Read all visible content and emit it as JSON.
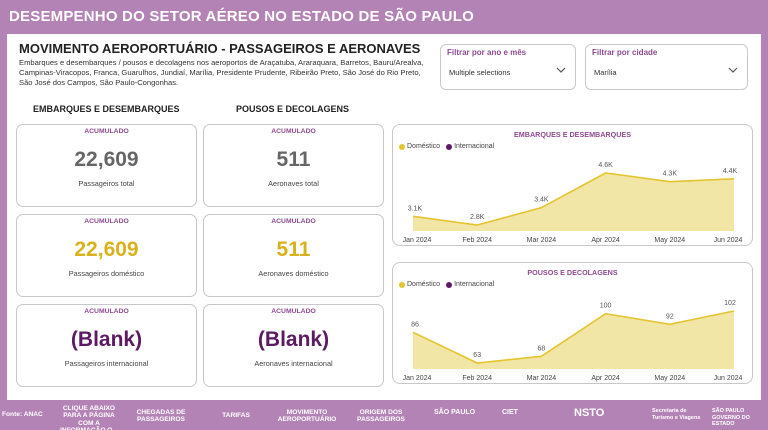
{
  "header": {
    "title": "DESEMPENHO DO SETOR AÉREO NO ESTADO DE SÃO PAULO"
  },
  "section": {
    "title": "MOVIMENTO AEROPORTUÁRIO - PASSAGEIROS E AERONAVES",
    "description": "Embarques e desembarques / pousos e decolagens nos aeroportos de Araçatuba, Araraquara, Barretos, Bauru/Arealva, Campinas-Viracopos, Franca, Guarulhos, Jundiaí, Marília, Presidente Prudente, Ribeirão Preto, São José do Rio Preto, São José dos Campos, São Paulo-Congonhas."
  },
  "filters": {
    "period": {
      "label": "Filtrar por ano e mês",
      "value": "Multiple selections"
    },
    "city": {
      "label": "Filtrar por cidade",
      "value": "Marília"
    }
  },
  "columns": {
    "left": "EMBARQUES E DESEMBARQUES",
    "right": "POUSOS E DECOLAGENS"
  },
  "cards": {
    "pass_total": {
      "label": "ACUMULADO",
      "value": "22,609",
      "sub": "Passageiros total"
    },
    "air_total": {
      "label": "ACUMULADO",
      "value": "511",
      "sub": "Aeronaves total"
    },
    "pass_dom": {
      "label": "ACUMULADO",
      "value": "22,609",
      "sub": "Passageiros doméstico"
    },
    "air_dom": {
      "label": "ACUMULADO",
      "value": "511",
      "sub": "Aeronaves doméstico"
    },
    "pass_int": {
      "label": "ACUMULADO",
      "value": "(Blank)",
      "sub": "Passageiros internacional"
    },
    "air_int": {
      "label": "ACUMULADO",
      "value": "(Blank)",
      "sub": "Aeronaves internacional"
    }
  },
  "legend": {
    "domestic": "Doméstico",
    "international": "Internacional"
  },
  "colors": {
    "domestic": "#e4c430",
    "domestic_fill": "#f2e6a6",
    "international": "#5c1a62",
    "accent": "#b483b6"
  },
  "chart_data": [
    {
      "type": "area",
      "title": "EMBARQUES E DESEMBARQUES",
      "categories": [
        "Jan 2024",
        "Feb 2024",
        "Mar 2024",
        "Apr 2024",
        "May 2024",
        "Jun 2024"
      ],
      "series": [
        {
          "name": "Doméstico",
          "values": [
            3100,
            2800,
            3400,
            4600,
            4300,
            4400
          ]
        }
      ],
      "labels": [
        "3.1K",
        "2.8K",
        "3.4K",
        "4.6K",
        "4.3K",
        "4.4K"
      ],
      "ylim": [
        0,
        4800
      ]
    },
    {
      "type": "area",
      "title": "POUSOS E DECOLAGENS",
      "categories": [
        "Jan 2024",
        "Feb 2024",
        "Mar 2024",
        "Apr 2024",
        "May 2024",
        "Jun 2024"
      ],
      "series": [
        {
          "name": "Doméstico",
          "values": [
            86,
            63,
            68,
            100,
            92,
            102
          ]
        }
      ],
      "labels": [
        "86",
        "63",
        "68",
        "100",
        "92",
        "102"
      ],
      "ylim": [
        0,
        110
      ]
    }
  ],
  "footer": {
    "source": "Fonte: ANAC",
    "nav": [
      "CLIQUE ABAIXO PARA A PÁGINA COM A INFORMAÇÃO Q...",
      "CHEGADAS DE PASSAGEIROS",
      "TARIFAS",
      "MOVIMENTO AEROPORTUÁRIO",
      "ORIGEM DOS PASSAGEIROS"
    ],
    "logos": [
      "SÃO PAULO",
      "CIET",
      "NSTO",
      "Secretaria de Turismo e Viagens",
      "SÃO PAULO GOVERNO DO ESTADO"
    ]
  }
}
